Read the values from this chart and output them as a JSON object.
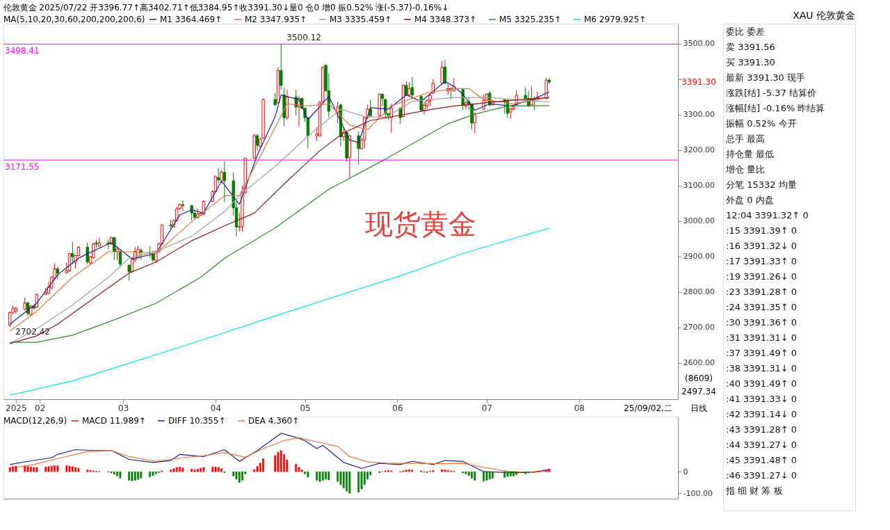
{
  "chart_data": [
    {
      "type": "candlestick",
      "title": "伦敦黄金 2025/07/22 开3396.77↑高3402.71↑低3384.95↑收3391.30↓量0 仓0 增0 振0.52% 涨(-5.37)-0.16%↓",
      "x": [
        "2025-01-22",
        "2025-01-23",
        "2025-01-24",
        "2025-01-27",
        "2025-01-28",
        "2025-01-29",
        "2025-01-30",
        "2025-01-31",
        "2025-02-03",
        "2025-02-04",
        "2025-02-05",
        "2025-02-06",
        "2025-02-07",
        "2025-02-10",
        "2025-02-11",
        "2025-02-12",
        "2025-02-13",
        "2025-02-14",
        "2025-02-17",
        "2025-02-18",
        "2025-02-19",
        "2025-02-20",
        "2025-02-21",
        "2025-02-24",
        "2025-02-25",
        "2025-02-26",
        "2025-02-27",
        "2025-02-28",
        "2025-03-03",
        "2025-03-04",
        "2025-03-05",
        "2025-03-06",
        "2025-03-07",
        "2025-03-10",
        "2025-03-11",
        "2025-03-12",
        "2025-03-13",
        "2025-03-14",
        "2025-03-17",
        "2025-03-18",
        "2025-03-19",
        "2025-03-20",
        "2025-03-21",
        "2025-03-24",
        "2025-03-25",
        "2025-03-26",
        "2025-03-27",
        "2025-03-28",
        "2025-03-31",
        "2025-04-01",
        "2025-04-02",
        "2025-04-03",
        "2025-04-04",
        "2025-04-07",
        "2025-04-08",
        "2025-04-09",
        "2025-04-10",
        "2025-04-11",
        "2025-04-14",
        "2025-04-15",
        "2025-04-16",
        "2025-04-17",
        "2025-04-21",
        "2025-04-22",
        "2025-04-23",
        "2025-04-24",
        "2025-04-25",
        "2025-04-28",
        "2025-04-29",
        "2025-04-30",
        "2025-05-01",
        "2025-05-02",
        "2025-05-05",
        "2025-05-06",
        "2025-05-07",
        "2025-05-08",
        "2025-05-09",
        "2025-05-12",
        "2025-05-13",
        "2025-05-14",
        "2025-05-15",
        "2025-05-16",
        "2025-05-19",
        "2025-05-20",
        "2025-05-21",
        "2025-05-22",
        "2025-05-23",
        "2025-05-26",
        "2025-05-27",
        "2025-05-28",
        "2025-05-29",
        "2025-05-30",
        "2025-06-02",
        "2025-06-03",
        "2025-06-04",
        "2025-06-05",
        "2025-06-06",
        "2025-06-09",
        "2025-06-10",
        "2025-06-11",
        "2025-06-12",
        "2025-06-13",
        "2025-06-16",
        "2025-06-17",
        "2025-06-18",
        "2025-06-19",
        "2025-06-20",
        "2025-06-23",
        "2025-06-24",
        "2025-06-25",
        "2025-06-26",
        "2025-06-27",
        "2025-06-30",
        "2025-07-01",
        "2025-07-02",
        "2025-07-03",
        "2025-07-07",
        "2025-07-08",
        "2025-07-09",
        "2025-07-10",
        "2025-07-11",
        "2025-07-14",
        "2025-07-15",
        "2025-07-16",
        "2025-07-17",
        "2025-07-18",
        "2025-07-21",
        "2025-07-22"
      ],
      "ohlc": [
        [
          2706,
          2745,
          2702.42,
          2742
        ],
        [
          2742,
          2762,
          2739,
          2754
        ],
        [
          2745,
          2757,
          2739,
          2754
        ],
        [
          2751,
          2784,
          2748,
          2769
        ],
        [
          2769,
          2772,
          2733,
          2739
        ],
        [
          2736,
          2763,
          2733,
          2760
        ],
        [
          2760,
          2763,
          2751,
          2754
        ],
        [
          2757,
          2796,
          2754,
          2793
        ],
        [
          2793,
          2811,
          2790,
          2799
        ],
        [
          2796,
          2829,
          2793,
          2814
        ],
        [
          2811,
          2844,
          2808,
          2841
        ],
        [
          2838,
          2880,
          2835,
          2865
        ],
        [
          2865,
          2871,
          2835,
          2853
        ],
        [
          2853,
          2883,
          2853,
          2859
        ],
        [
          2859,
          2908,
          2856,
          2908
        ],
        [
          2908,
          2941,
          2878,
          2899
        ],
        [
          2883,
          2905,
          2866,
          2902
        ],
        [
          2902,
          2929,
          2899,
          2926
        ],
        [
          2926,
          2939,
          2878,
          2884
        ],
        [
          2881,
          2902,
          2878,
          2899
        ],
        [
          2896,
          2938,
          2893,
          2935
        ],
        [
          2938,
          2947,
          2923,
          2935
        ],
        [
          2929,
          2953,
          2926,
          2938
        ],
        [
          2938,
          2947,
          2920,
          2935
        ],
        [
          2935,
          2956,
          2932,
          2953
        ],
        [
          2953,
          2953,
          2890,
          2914
        ],
        [
          2914,
          2929,
          2890,
          2920
        ],
        [
          2914,
          2917,
          2869,
          2878
        ],
        [
          2875,
          2878,
          2832,
          2857
        ],
        [
          2857,
          2896,
          2854,
          2893
        ],
        [
          2890,
          2926,
          2884,
          2914
        ],
        [
          2896,
          2929,
          2893,
          2920
        ],
        [
          2917,
          2923,
          2890,
          2911
        ],
        [
          2911,
          2929,
          2896,
          2908
        ],
        [
          2908,
          2917,
          2884,
          2890
        ],
        [
          2887,
          2917,
          2881,
          2914
        ],
        [
          2914,
          2938,
          2911,
          2935
        ],
        [
          2935,
          2989,
          2932,
          2989
        ],
        [
          2989,
          3004,
          2977,
          2986
        ],
        [
          2983,
          3004,
          2980,
          3001
        ],
        [
          3001,
          3040,
          2998,
          3034
        ],
        [
          3034,
          3049,
          3031,
          3046
        ],
        [
          3046,
          3058,
          3028,
          3043
        ],
        [
          3043,
          3046,
          3001,
          3022
        ],
        [
          3022,
          3031,
          3004,
          3010
        ],
        [
          3010,
          3034,
          3007,
          3019
        ],
        [
          3016,
          3025,
          3016,
          3022
        ],
        [
          3019,
          3058,
          3016,
          3055
        ],
        [
          3055,
          3086,
          3052,
          3083
        ],
        [
          3083,
          3128,
          3080,
          3125
        ],
        [
          3122,
          3149,
          3107,
          3116
        ],
        [
          3113,
          3143,
          3107,
          3137
        ],
        [
          3137,
          3167,
          3053,
          3113
        ],
        [
          3113,
          3137,
          3015,
          3037
        ],
        [
          3037,
          3055,
          2957,
          2983
        ],
        [
          2982,
          3023,
          2970,
          2984
        ],
        [
          2984,
          3100,
          2970,
          3080
        ],
        [
          3080,
          3177,
          3075,
          3177
        ],
        [
          3177,
          3245,
          3175,
          3240
        ],
        [
          3240,
          3246,
          3200,
          3213
        ],
        [
          3210,
          3234,
          3207,
          3231
        ],
        [
          3234,
          3345,
          3231,
          3342
        ],
        [
          3342,
          3360,
          3324,
          3327
        ],
        [
          3333,
          3433,
          3330,
          3424
        ],
        [
          3424,
          3500.12,
          3370,
          3382
        ],
        [
          3355,
          3375,
          3267,
          3291
        ],
        [
          3291,
          3370,
          3285,
          3349
        ],
        [
          3349,
          3370,
          3297,
          3321
        ],
        [
          3321,
          3351,
          3267,
          3345
        ],
        [
          3345,
          3348,
          3315,
          3318
        ],
        [
          3318,
          3318,
          3279,
          3291
        ],
        [
          3291,
          3291,
          3204,
          3240
        ],
        [
          3240,
          3264,
          3225,
          3246
        ],
        [
          3240,
          3339,
          3237,
          3333
        ],
        [
          3336,
          3436,
          3333,
          3433
        ],
        [
          3439,
          3440,
          3364,
          3367
        ],
        [
          3367,
          3415,
          3291,
          3309
        ],
        [
          3306,
          3336,
          3276,
          3321
        ],
        [
          3327,
          3330,
          3210,
          3237
        ],
        [
          3237,
          3264,
          3225,
          3249
        ],
        [
          3249,
          3252,
          3167,
          3177
        ],
        [
          3179,
          3243,
          3122,
          3240
        ],
        [
          3240,
          3252,
          3158,
          3204
        ],
        [
          3204,
          3234,
          3201,
          3228
        ],
        [
          3228,
          3294,
          3204,
          3291
        ],
        [
          3291,
          3327,
          3288,
          3315
        ],
        [
          3315,
          3342,
          3291,
          3297
        ],
        [
          3297,
          3360,
          3294,
          3357
        ],
        [
          3357,
          3360,
          3324,
          3345
        ],
        [
          3342,
          3345,
          3288,
          3303
        ],
        [
          3303,
          3303,
          3285,
          3297
        ],
        [
          3291,
          3330,
          3249,
          3318
        ],
        [
          3318,
          3321,
          3273,
          3291
        ],
        [
          3294,
          3385,
          3291,
          3382
        ],
        [
          3382,
          3394,
          3352,
          3355
        ],
        [
          3355,
          3391,
          3352,
          3373
        ],
        [
          3376,
          3406,
          3342,
          3355
        ],
        [
          3351,
          3354,
          3309,
          3312
        ],
        [
          3312,
          3336,
          3300,
          3327
        ],
        [
          3324,
          3342,
          3315,
          3339
        ],
        [
          3339,
          3360,
          3324,
          3354
        ],
        [
          3360,
          3400,
          3357,
          3388
        ],
        [
          3388,
          3451,
          3385,
          3433
        ],
        [
          3434,
          3454,
          3385,
          3388
        ],
        [
          3367,
          3385,
          3355,
          3373
        ],
        [
          3373,
          3376,
          3342,
          3370
        ],
        [
          3367,
          3403,
          3364,
          3379
        ],
        [
          3370,
          3373,
          3312,
          3327
        ],
        [
          3324,
          3339,
          3315,
          3333
        ],
        [
          3336,
          3348,
          3312,
          3330
        ],
        [
          3330,
          3330,
          3258,
          3276
        ],
        [
          3276,
          3306,
          3247,
          3301
        ],
        [
          3315,
          3357,
          3312,
          3339
        ],
        [
          3342,
          3360,
          3333,
          3357
        ],
        [
          3360,
          3366,
          3323,
          3327
        ],
        [
          3327,
          3342,
          3327,
          3336
        ],
        [
          3342,
          3342,
          3302,
          3336
        ],
        [
          3339,
          3342,
          3290,
          3303
        ],
        [
          3307,
          3320,
          3288,
          3315
        ],
        [
          3315,
          3324,
          3312,
          3321
        ],
        [
          3327,
          3369,
          3324,
          3354
        ],
        [
          3354,
          3376,
          3342,
          3345
        ],
        [
          3345,
          3367,
          3321,
          3324
        ],
        [
          3327,
          3379,
          3324,
          3345
        ],
        [
          3345,
          3351,
          3312,
          3342
        ],
        [
          3342,
          3364,
          3342,
          3348
        ],
        [
          3345,
          3403,
          3343,
          3397
        ],
        [
          3396.77,
          3402.71,
          3384.95,
          3391.3
        ]
      ],
      "series": [
        {
          "name": "M1 3364.469↑",
          "type": "line",
          "color": "#1f1f8f",
          "x": [
            "2025-01-22",
            "2025-01-31",
            "2025-02-07",
            "2025-02-14",
            "2025-02-25",
            "2025-03-04",
            "2025-03-12",
            "2025-03-20",
            "2025-03-24",
            "2025-03-28",
            "2025-04-03",
            "2025-04-09",
            "2025-04-15",
            "2025-04-21",
            "2025-04-23",
            "2025-04-29",
            "2025-05-02",
            "2025-05-09",
            "2025-05-16",
            "2025-05-19",
            "2025-05-23",
            "2025-05-29",
            "2025-06-04",
            "2025-06-09",
            "2025-06-17",
            "2025-06-20",
            "2025-06-23",
            "2025-06-27",
            "2025-07-02",
            "2025-07-09",
            "2025-07-17",
            "2025-07-22"
          ],
          "values": [
            2709,
            2768,
            2848,
            2895,
            2939,
            2893,
            2908,
            3017,
            3031,
            3022,
            3112,
            3047,
            3185,
            3294,
            3355,
            3342,
            3285,
            3351,
            3228,
            3221,
            3319,
            3315,
            3355,
            3337,
            3393,
            3379,
            3357,
            3312,
            3330,
            3324,
            3344,
            3364
          ]
        },
        {
          "name": "M2 3347.935↑",
          "type": "line",
          "color": "#e8743b",
          "x": [
            "2025-01-22",
            "2025-01-31",
            "2025-02-12",
            "2025-02-24",
            "2025-03-03",
            "2025-03-12",
            "2025-03-24",
            "2025-04-04",
            "2025-04-09",
            "2025-04-17",
            "2025-04-25",
            "2025-05-02",
            "2025-05-09",
            "2025-05-16",
            "2025-05-22",
            "2025-05-30",
            "2025-06-11",
            "2025-06-20",
            "2025-06-25",
            "2025-06-30",
            "2025-07-10",
            "2025-07-22"
          ],
          "values": [
            2690,
            2745,
            2841,
            2913,
            2913,
            2908,
            2998,
            3071,
            3071,
            3198,
            3330,
            3324,
            3330,
            3270,
            3257,
            3324,
            3361,
            3373,
            3373,
            3342,
            3330,
            3348
          ]
        },
        {
          "name": "M3 3335.459↑",
          "type": "line",
          "color": "#a0a0a0",
          "x": [
            "2025-01-22",
            "2025-01-31",
            "2025-02-12",
            "2025-02-24",
            "2025-03-03",
            "2025-03-12",
            "2025-03-24",
            "2025-04-04",
            "2025-04-09",
            "2025-04-22",
            "2025-05-02",
            "2025-05-13",
            "2025-05-21",
            "2025-05-28",
            "2025-06-06",
            "2025-06-20",
            "2025-06-25",
            "2025-07-02",
            "2025-07-10",
            "2025-07-22"
          ],
          "values": [
            2654,
            2696,
            2763,
            2841,
            2895,
            2913,
            2957,
            3026,
            3071,
            3161,
            3239,
            3315,
            3294,
            3292,
            3337,
            3348,
            3348,
            3348,
            3342,
            3335
          ]
        },
        {
          "name": "M4 3348.373↑",
          "type": "line",
          "color": "#8b1a1a",
          "x": [
            "2025-01-22",
            "2025-01-31",
            "2025-02-07",
            "2025-02-19",
            "2025-03-03",
            "2025-03-12",
            "2025-03-24",
            "2025-04-04",
            "2025-04-14",
            "2025-04-25",
            "2025-05-06",
            "2025-05-14",
            "2025-05-23",
            "2025-06-04",
            "2025-06-13",
            "2025-06-20",
            "2025-06-25",
            "2025-07-08",
            "2025-07-22"
          ],
          "values": [
            2654,
            2676,
            2709,
            2781,
            2853,
            2884,
            2944,
            2986,
            3022,
            3112,
            3198,
            3248,
            3283,
            3301,
            3315,
            3324,
            3328,
            3339,
            3348
          ]
        },
        {
          "name": "M5 3325.235↑",
          "type": "line",
          "color": "#2e8b2e",
          "x": [
            "2025-01-22",
            "2025-01-31",
            "2025-02-12",
            "2025-02-26",
            "2025-03-12",
            "2025-03-27",
            "2025-04-04",
            "2025-04-21",
            "2025-05-09",
            "2025-05-28",
            "2025-06-18",
            "2025-06-27",
            "2025-07-08",
            "2025-07-22"
          ],
          "values": [
            2658,
            2658,
            2678,
            2721,
            2768,
            2841,
            2895,
            2980,
            3089,
            3174,
            3274,
            3301,
            3324,
            3325
          ]
        },
        {
          "name": "M6 2979.925↑",
          "type": "line",
          "color": "#00e5ee",
          "x": [
            "2025-01-22",
            "2025-02-12",
            "2025-03-05",
            "2025-03-27",
            "2025-04-17",
            "2025-05-09",
            "2025-06-02",
            "2025-06-23",
            "2025-07-22"
          ],
          "values": [
            2509,
            2549,
            2604,
            2663,
            2721,
            2781,
            2845,
            2908,
            2980
          ]
        }
      ],
      "legend": "top",
      "legend_title": "MA(5,10,20,30,60,200,200,200,6)",
      "xlim": [
        "2025-01-21",
        "2025-09-02"
      ],
      "xticks": [
        {
          "value": "2025-01-24",
          "label": "2025"
        },
        {
          "value": "2025-02-01",
          "label": "02"
        },
        {
          "value": "2025-03-01",
          "label": "03"
        },
        {
          "value": "2025-04-01",
          "label": "04"
        },
        {
          "value": "2025-05-01",
          "label": "05"
        },
        {
          "value": "2025-06-01",
          "label": "06"
        },
        {
          "value": "2025-07-01",
          "label": "07"
        },
        {
          "value": "2025-08-01",
          "label": "08"
        }
      ],
      "ylim": [
        2497.34,
        3556
      ],
      "yticks": [
        {
          "value": 2600,
          "label": "2600.00"
        },
        {
          "value": 2700,
          "label": "2700.00"
        },
        {
          "value": 2800,
          "label": "2800.00"
        },
        {
          "value": 2900,
          "label": "2900.00"
        },
        {
          "value": 3000,
          "label": "3000.00"
        },
        {
          "value": 3100,
          "label": "3100.00"
        },
        {
          "value": 3200,
          "label": "3200.00"
        },
        {
          "value": 3300,
          "label": "3300.00"
        },
        {
          "value": 3400,
          "label": null
        },
        {
          "value": 3500,
          "label": "3500.00"
        }
      ],
      "ref_lines": [
        {
          "axis": "y",
          "value": 3498.41,
          "label": "3498.41",
          "color": "#ff00ff"
        },
        {
          "axis": "y",
          "value": 3171.55,
          "label": "3171.55",
          "color": "#ff00ff"
        }
      ],
      "annotations": [
        {
          "text": "3500.12",
          "x": "2025-04-23",
          "y": 3500.12
        },
        {
          "text": "2702.42",
          "x": "2025-01-22",
          "y": 2702.42
        },
        "3391.30",
        "现货黄金",
        "(8609)",
        "2497.34",
        "25/09/02,二",
        "日线"
      ]
    },
    {
      "type": "bar",
      "x": [
        "2025-01-22",
        "2025-01-23",
        "2025-01-24",
        "2025-01-27",
        "2025-01-28",
        "2025-01-29",
        "2025-01-30",
        "2025-01-31",
        "2025-02-03",
        "2025-02-04",
        "2025-02-05",
        "2025-02-06",
        "2025-02-07",
        "2025-02-10",
        "2025-02-11",
        "2025-02-12",
        "2025-02-13",
        "2025-02-14",
        "2025-02-17",
        "2025-02-18",
        "2025-02-19",
        "2025-02-20",
        "2025-02-21",
        "2025-02-24",
        "2025-02-25",
        "2025-02-26",
        "2025-02-27",
        "2025-02-28",
        "2025-03-03",
        "2025-03-04",
        "2025-03-05",
        "2025-03-06",
        "2025-03-07",
        "2025-03-10",
        "2025-03-11",
        "2025-03-12",
        "2025-03-13",
        "2025-03-14",
        "2025-03-17",
        "2025-03-18",
        "2025-03-19",
        "2025-03-20",
        "2025-03-21",
        "2025-03-24",
        "2025-03-25",
        "2025-03-26",
        "2025-03-27",
        "2025-03-28",
        "2025-03-31",
        "2025-04-01",
        "2025-04-02",
        "2025-04-03",
        "2025-04-04",
        "2025-04-07",
        "2025-04-08",
        "2025-04-09",
        "2025-04-10",
        "2025-04-11",
        "2025-04-14",
        "2025-04-15",
        "2025-04-16",
        "2025-04-17",
        "2025-04-21",
        "2025-04-22",
        "2025-04-23",
        "2025-04-24",
        "2025-04-25",
        "2025-04-28",
        "2025-04-29",
        "2025-04-30",
        "2025-05-01",
        "2025-05-02",
        "2025-05-05",
        "2025-05-06",
        "2025-05-07",
        "2025-05-08",
        "2025-05-09",
        "2025-05-12",
        "2025-05-13",
        "2025-05-14",
        "2025-05-15",
        "2025-05-16",
        "2025-05-19",
        "2025-05-20",
        "2025-05-21",
        "2025-05-22",
        "2025-05-23",
        "2025-05-26",
        "2025-05-27",
        "2025-05-28",
        "2025-05-29",
        "2025-05-30",
        "2025-06-02",
        "2025-06-03",
        "2025-06-04",
        "2025-06-05",
        "2025-06-06",
        "2025-06-09",
        "2025-06-10",
        "2025-06-11",
        "2025-06-12",
        "2025-06-13",
        "2025-06-16",
        "2025-06-17",
        "2025-06-18",
        "2025-06-19",
        "2025-06-20",
        "2025-06-23",
        "2025-06-24",
        "2025-06-25",
        "2025-06-26",
        "2025-06-27",
        "2025-06-30",
        "2025-07-01",
        "2025-07-02",
        "2025-07-03",
        "2025-07-07",
        "2025-07-08",
        "2025-07-09",
        "2025-07-10",
        "2025-07-11",
        "2025-07-14",
        "2025-07-15",
        "2025-07-16",
        "2025-07-17",
        "2025-07-18",
        "2025-07-21",
        "2025-07-22"
      ],
      "series": [
        {
          "name": "MACD 11.989↑",
          "type": "bar",
          "colors": [
            "#ff0000",
            "#ff0000",
            "#ff0000",
            "#ff0000",
            "#ff0000",
            "#ff0000",
            "#ff0000",
            "#ff0000",
            "#ff0000",
            "#ff0000",
            "#ff0000",
            "#ff0000",
            "#ff0000",
            "#ff0000",
            "#ff0000",
            "#ff0000",
            "#ff0000",
            "#ff0000",
            "#ff0000",
            "#ff0000",
            "#ff0000",
            "#ff0000",
            "#ff0000",
            "#008000",
            "#008000",
            "#008000",
            "#008000",
            "#008000",
            "#008000",
            "#008000",
            "#008000",
            "#008000",
            "#008000",
            "#008000",
            "#008000",
            "#008000",
            "#008000",
            "#ff0000",
            "#ff0000",
            "#ff0000",
            "#ff0000",
            "#ff0000",
            "#ff0000",
            "#ff0000",
            "#ff0000",
            "#ff0000",
            "#ff0000",
            "#ff0000",
            "#ff0000",
            "#ff0000",
            "#ff0000",
            "#ff0000",
            "#008000",
            "#008000",
            "#008000",
            "#008000",
            "#008000",
            "#008000",
            "#ff0000",
            "#ff0000",
            "#ff0000",
            "#ff0000",
            "#ff0000",
            "#ff0000",
            "#ff0000",
            "#ff0000",
            "#ff0000",
            "#ff0000",
            "#ff0000",
            "#ff0000",
            "#008000",
            "#008000",
            "#008000",
            "#008000",
            "#008000",
            "#008000",
            "#008000",
            "#008000",
            "#008000",
            "#008000",
            "#008000",
            "#008000",
            "#008000",
            "#008000",
            "#008000",
            "#008000",
            "#008000",
            "#008000",
            "#ff0000",
            "#ff0000",
            "#ff0000",
            "#ff0000",
            "#008000",
            "#ff0000",
            "#ff0000",
            "#ff0000",
            "#ff0000",
            "#ff0000",
            "#008000",
            "#008000",
            "#ff0000",
            "#ff0000",
            "#ff0000",
            "#ff0000",
            "#ff0000",
            "#ff0000",
            "#ff0000",
            "#008000",
            "#008000",
            "#008000",
            "#008000",
            "#008000",
            "#008000",
            "#008000",
            "#008000",
            "#008000",
            "#008000",
            "#008000",
            "#008000",
            "#008000",
            "#008000",
            "#008000",
            "#008000",
            "#008000",
            "#ff0000",
            "#ff0000",
            "#ff0000",
            "#ff0000"
          ],
          "values": [
            20,
            24,
            26,
            26,
            24,
            22,
            20,
            20,
            22,
            24,
            26,
            28,
            28,
            28,
            26,
            24,
            20,
            16,
            8,
            6,
            4,
            2,
            1,
            -2,
            -6,
            -12,
            -20,
            -30,
            -40,
            -42,
            -40,
            -36,
            -30,
            -24,
            -18,
            -10,
            -4,
            4,
            8,
            14,
            20,
            22,
            18,
            12,
            8,
            12,
            16,
            20,
            22,
            22,
            20,
            14,
            -4,
            -20,
            -35,
            -50,
            -40,
            -10,
            10,
            25,
            40,
            60,
            75,
            90,
            98,
            80,
            55,
            35,
            20,
            8,
            -10,
            -25,
            -40,
            -45,
            -40,
            -35,
            -38,
            -45,
            -60,
            -75,
            -90,
            -100,
            -95,
            -80,
            -60,
            -35,
            -15,
            -5,
            0,
            4,
            6,
            4,
            -2,
            4,
            8,
            10,
            8,
            4,
            -2,
            -4,
            2,
            6,
            10,
            8,
            6,
            4,
            2,
            -6,
            -10,
            -18,
            -30,
            -40,
            -44,
            -40,
            -34,
            -30,
            -26,
            -22,
            -20,
            -20,
            -14,
            -10,
            -6,
            -2,
            0,
            2,
            6,
            12
          ]
        },
        {
          "name": "DIFF 10.355↑",
          "type": "line",
          "color": "#1f1f8f",
          "x": [
            "2025-01-22",
            "2025-01-28",
            "2025-02-05",
            "2025-02-07",
            "2025-02-13",
            "2025-02-19",
            "2025-02-25",
            "2025-03-03",
            "2025-03-11",
            "2025-03-17",
            "2025-03-20",
            "2025-03-28",
            "2025-04-04",
            "2025-04-09",
            "2025-04-15",
            "2025-04-23",
            "2025-04-28",
            "2025-05-01",
            "2025-05-05",
            "2025-05-07",
            "2025-05-14",
            "2025-05-20",
            "2025-05-26",
            "2025-06-02",
            "2025-06-06",
            "2025-06-13",
            "2025-06-17",
            "2025-06-23",
            "2025-06-30",
            "2025-07-08",
            "2025-07-16",
            "2025-07-22"
          ],
          "values": [
            33,
            48,
            65,
            80,
            102,
            98,
            98,
            57,
            43,
            52,
            80,
            70,
            102,
            48,
            98,
            178,
            159,
            144,
            107,
            122,
            43,
            15,
            39,
            33,
            48,
            33,
            52,
            48,
            0,
            -4,
            -4,
            10
          ]
        },
        {
          "name": "DEA 4.360↑",
          "type": "line",
          "color": "#e8743b",
          "x": [
            "2025-01-22",
            "2025-01-30",
            "2025-02-07",
            "2025-02-17",
            "2025-02-25",
            "2025-03-03",
            "2025-03-12",
            "2025-03-19",
            "2025-03-28",
            "2025-04-04",
            "2025-04-11",
            "2025-04-17",
            "2025-04-24",
            "2025-04-29",
            "2025-05-06",
            "2025-05-12",
            "2025-05-16",
            "2025-05-22",
            "2025-05-29",
            "2025-06-06",
            "2025-06-16",
            "2025-06-23",
            "2025-06-30",
            "2025-07-08",
            "2025-07-16",
            "2025-07-22"
          ],
          "values": [
            15,
            33,
            61,
            93,
            98,
            70,
            48,
            61,
            74,
            89,
            67,
            107,
            144,
            157,
            135,
            117,
            70,
            46,
            39,
            39,
            37,
            39,
            20,
            2,
            -4,
            4
          ]
        }
      ],
      "legend": "top left",
      "legend_title": "MACD(12,26,9)",
      "xlim": [
        "2025-01-21",
        "2025-09-02"
      ],
      "ylim": [
        -125,
        255
      ],
      "yticks": [
        0,
        {
          "value": -100,
          "label": "-100.00"
        }
      ],
      "tick_labels": "y"
    },
    {
      "type": "other",
      "title": "XAU 伦敦黄金",
      "annotations": [
        "委比 委差",
        "卖 3391.56",
        "买 3391.30",
        "最新 3391.30 现手",
        "涨跌[结] -5.37 结算价",
        "涨幅[结] -0.16% 昨结算",
        "振幅 0.52% 今开",
        "总手 最高",
        "持仓量 最低",
        "增仓 量比",
        "分笔 15332 均量",
        "外盘 0 内盘",
        "12:04 3391.32↑ 0",
        ":15 3391.39↑ 0",
        ":16 3391.32↓ 0",
        ":17 3391.33↑ 0",
        ":19 3391.26↓ 0",
        ":23 3391.28↑ 0",
        ":24 3391.35↑ 0",
        ":30 3391.36↑ 0",
        ":31 3391.31↓ 0",
        ":37 3391.49↑ 0",
        ":38 3391.31↓ 0",
        ":40 3391.49↑ 0",
        ":41 3391.33↓ 0",
        ":42 3391.14↓ 0",
        ":43 3391.28↑ 0",
        ":44 3391.27↓ 0",
        ":45 3391.48↑ 0",
        ":46 3391.27↓ 0",
        "指 细 财 筹 板"
      ]
    }
  ]
}
